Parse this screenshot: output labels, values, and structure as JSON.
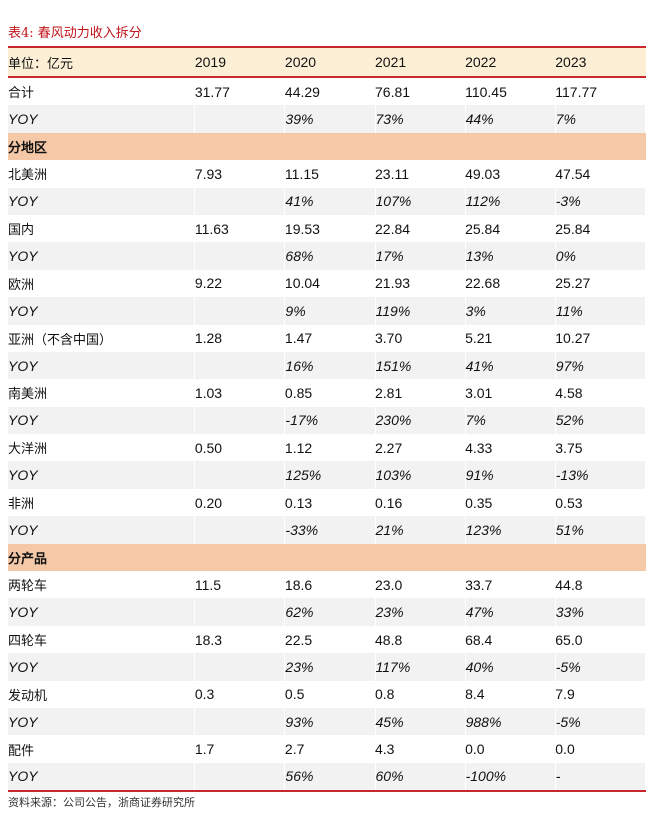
{
  "title": "表4:  春风动力收入拆分",
  "header": [
    "单位：亿元",
    "2019",
    "2020",
    "2021",
    "2022",
    "2023"
  ],
  "rows": [
    {
      "type": "data",
      "cells": [
        "合计",
        "31.77",
        "44.29",
        "76.81",
        "110.45",
        "117.77"
      ]
    },
    {
      "type": "yoy",
      "cells": [
        "YOY",
        "",
        "39%",
        "73%",
        "44%",
        "7%"
      ]
    },
    {
      "type": "sec",
      "cells": [
        "分地区",
        "",
        "",
        "",
        "",
        ""
      ]
    },
    {
      "type": "data",
      "cells": [
        "北美洲",
        "7.93",
        "11.15",
        "23.11",
        "49.03",
        "47.54"
      ]
    },
    {
      "type": "yoy",
      "cells": [
        "YOY",
        "",
        "41%",
        "107%",
        "112%",
        "-3%"
      ]
    },
    {
      "type": "data",
      "cells": [
        "国内",
        "11.63",
        "19.53",
        "22.84",
        "25.84",
        "25.84"
      ]
    },
    {
      "type": "yoy",
      "cells": [
        "YOY",
        "",
        "68%",
        "17%",
        "13%",
        "0%"
      ]
    },
    {
      "type": "data",
      "cells": [
        "欧洲",
        "9.22",
        "10.04",
        "21.93",
        "22.68",
        "25.27"
      ]
    },
    {
      "type": "yoy",
      "cells": [
        "YOY",
        "",
        "9%",
        "119%",
        "3%",
        "11%"
      ]
    },
    {
      "type": "data",
      "cells": [
        "亚洲（不含中国）",
        "1.28",
        "1.47",
        "3.70",
        "5.21",
        "10.27"
      ]
    },
    {
      "type": "yoy",
      "cells": [
        "YOY",
        "",
        "16%",
        "151%",
        "41%",
        "97%"
      ]
    },
    {
      "type": "data",
      "cells": [
        "南美洲",
        "1.03",
        "0.85",
        "2.81",
        "3.01",
        "4.58"
      ]
    },
    {
      "type": "yoy",
      "cells": [
        "YOY",
        "",
        "-17%",
        "230%",
        "7%",
        "52%"
      ]
    },
    {
      "type": "data",
      "cells": [
        "大洋洲",
        "0.50",
        "1.12",
        "2.27",
        "4.33",
        "3.75"
      ]
    },
    {
      "type": "yoy",
      "cells": [
        "YOY",
        "",
        "125%",
        "103%",
        "91%",
        "-13%"
      ]
    },
    {
      "type": "data",
      "cells": [
        "非洲",
        "0.20",
        "0.13",
        "0.16",
        "0.35",
        "0.53"
      ]
    },
    {
      "type": "yoy",
      "cells": [
        "YOY",
        "",
        "-33%",
        "21%",
        "123%",
        "51%"
      ]
    },
    {
      "type": "sec",
      "cells": [
        "分产品",
        "",
        "",
        "",
        "",
        ""
      ]
    },
    {
      "type": "data",
      "cells": [
        "两轮车",
        "11.5",
        "18.6",
        "23.0",
        "33.7",
        "44.8"
      ]
    },
    {
      "type": "yoy",
      "cells": [
        "YOY",
        "",
        "62%",
        "23%",
        "47%",
        "33%"
      ]
    },
    {
      "type": "data",
      "cells": [
        "四轮车",
        "18.3",
        "22.5",
        "48.8",
        "68.4",
        "65.0"
      ]
    },
    {
      "type": "yoy",
      "cells": [
        "YOY",
        "",
        "23%",
        "117%",
        "40%",
        "-5%"
      ]
    },
    {
      "type": "data",
      "cells": [
        "发动机",
        "0.3",
        "0.5",
        "0.8",
        "8.4",
        "7.9"
      ]
    },
    {
      "type": "yoy",
      "cells": [
        "YOY",
        "",
        "93%",
        "45%",
        "988%",
        "-5%"
      ]
    },
    {
      "type": "data",
      "cells": [
        "配件",
        "1.7",
        "2.7",
        "4.3",
        "0.0",
        "0.0"
      ]
    },
    {
      "type": "yoy",
      "cells": [
        "YOY",
        "",
        "56%",
        "60%",
        "-100%",
        "-"
      ]
    }
  ],
  "source": "资料来源：公司公告，浙商证券研究所"
}
